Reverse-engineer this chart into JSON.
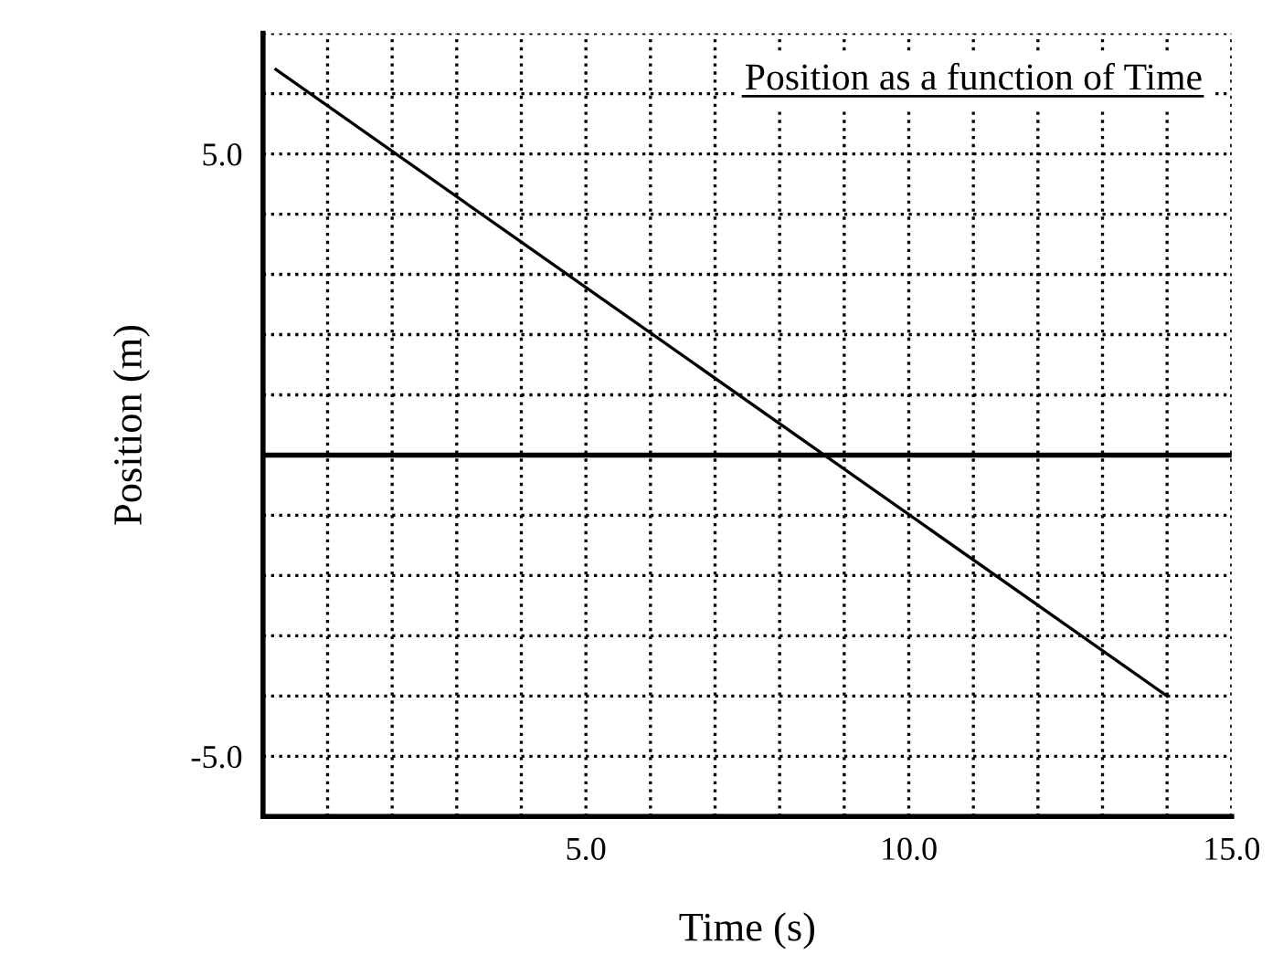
{
  "chart_data": {
    "type": "line",
    "title": "Position as a function of Time",
    "xlabel": "Time (s)",
    "ylabel": "Position (m)",
    "x": [
      0.2,
      14.0
    ],
    "series": [
      {
        "color": "#000000",
        "values": [
          6.4,
          -4.0
        ]
      }
    ],
    "xlim": [
      0,
      15
    ],
    "ylim": [
      -6,
      7
    ],
    "xticks": [
      {
        "value": 1,
        "label": null
      },
      {
        "value": 2,
        "label": null
      },
      {
        "value": 3,
        "label": null
      },
      {
        "value": 4,
        "label": null
      },
      {
        "value": 5,
        "label": "5.0"
      },
      {
        "value": 6,
        "label": null
      },
      {
        "value": 7,
        "label": null
      },
      {
        "value": 8,
        "label": null
      },
      {
        "value": 9,
        "label": null
      },
      {
        "value": 10,
        "label": "10.0"
      },
      {
        "value": 11,
        "label": null
      },
      {
        "value": 12,
        "label": null
      },
      {
        "value": 13,
        "label": null
      },
      {
        "value": 14,
        "label": null
      },
      {
        "value": 15,
        "label": "15.0"
      }
    ],
    "yticks": [
      {
        "value": -5,
        "label": "-5.0"
      },
      {
        "value": -4,
        "label": null
      },
      {
        "value": -3,
        "label": null
      },
      {
        "value": -2,
        "label": null
      },
      {
        "value": -1,
        "label": null
      },
      {
        "value": 0,
        "label": null
      },
      {
        "value": 1,
        "label": null
      },
      {
        "value": 2,
        "label": null
      },
      {
        "value": 3,
        "label": null
      },
      {
        "value": 4,
        "label": null
      },
      {
        "value": 5,
        "label": "5.0"
      },
      {
        "value": 6,
        "label": null
      },
      {
        "value": 7,
        "label": null
      }
    ],
    "ref_lines": [
      {
        "axis": "y",
        "value": 0,
        "color": "#000000"
      }
    ],
    "grid": true,
    "line_style": "solid",
    "marker": "none"
  }
}
